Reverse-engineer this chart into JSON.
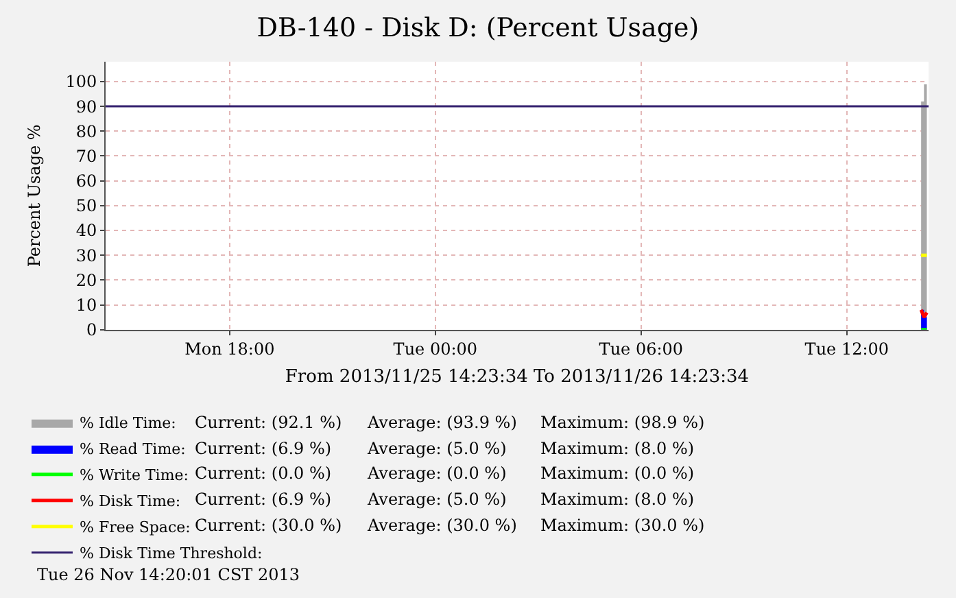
{
  "chart_data": {
    "type": "area",
    "title": "DB-140 - Disk D: (Percent Usage)",
    "ylabel": "Percent Usage %",
    "xlabel": "From 2013/11/25 14:23:34 To 2013/11/26 14:23:34",
    "xlim": [
      "2013-11-25T14:23",
      "2013-11-26T14:23"
    ],
    "xticks": [
      {
        "value": "2013-11-25T18:00",
        "label": "Mon 18:00"
      },
      {
        "value": "2013-11-26T00:00",
        "label": "Tue 00:00"
      },
      {
        "value": "2013-11-26T06:00",
        "label": "Tue 06:00"
      },
      {
        "value": "2013-11-26T12:00",
        "label": "Tue 12:00"
      }
    ],
    "ylim": [
      0,
      108
    ],
    "yticks": [
      0,
      10,
      20,
      30,
      40,
      50,
      60,
      70,
      80,
      90,
      100
    ],
    "grid": true,
    "legend": "bottom left",
    "series": [
      {
        "name": "% Idle Time:",
        "color": "#a8a8a8",
        "x": [
          "2013-11-26T14:10",
          "2013-11-26T14:15",
          "2013-11-26T14:20"
        ],
        "values": [
          92,
          98.9,
          92.1
        ]
      },
      {
        "name": "% Read Time:",
        "color": "#0000ff",
        "type": "area",
        "x": [
          "2013-11-26T14:10",
          "2013-11-26T14:15",
          "2013-11-26T14:20"
        ],
        "values": [
          8,
          5,
          6.9
        ]
      },
      {
        "name": "% Write Time:",
        "color": "#00ff00",
        "type": "line",
        "x": [
          "2013-11-26T14:10",
          "2013-11-26T14:15",
          "2013-11-26T14:20"
        ],
        "values": [
          0,
          0,
          0
        ]
      },
      {
        "name": "% Disk Time:",
        "color": "#ff0000",
        "type": "line",
        "x": [
          "2013-11-26T14:10",
          "2013-11-26T14:15",
          "2013-11-26T14:20"
        ],
        "values": [
          8,
          5,
          6.9
        ]
      },
      {
        "name": "% Free Space:",
        "color": "#ffff00",
        "type": "line",
        "x": [
          "2013-11-26T14:10",
          "2013-11-26T14:15",
          "2013-11-26T14:20"
        ],
        "values": [
          30,
          30,
          30
        ]
      }
    ],
    "ref_lines": [
      {
        "axis": "y",
        "value": 90,
        "label": "% Disk Time Threshold:",
        "color": "#33206e"
      }
    ],
    "annotations": [
      "Current: (92.1 %)",
      "Average: (93.9 %)",
      "Maximum: (98.9 %)",
      "Current: (6.9 %)",
      "Average: (5.0 %)",
      "Maximum: (8.0 %)",
      "Current: (0.0 %)",
      "Average: (0.0 %)",
      "Maximum: (0.0 %)",
      "Current: (6.9 %)",
      "Average: (5.0 %)",
      "Maximum: (8.0 %)",
      "Current: (30.0 %)",
      "Average: (30.0 %)",
      "Maximum: (30.0 %)",
      "Tue 26 Nov 14:20:01 CST 2013"
    ]
  }
}
